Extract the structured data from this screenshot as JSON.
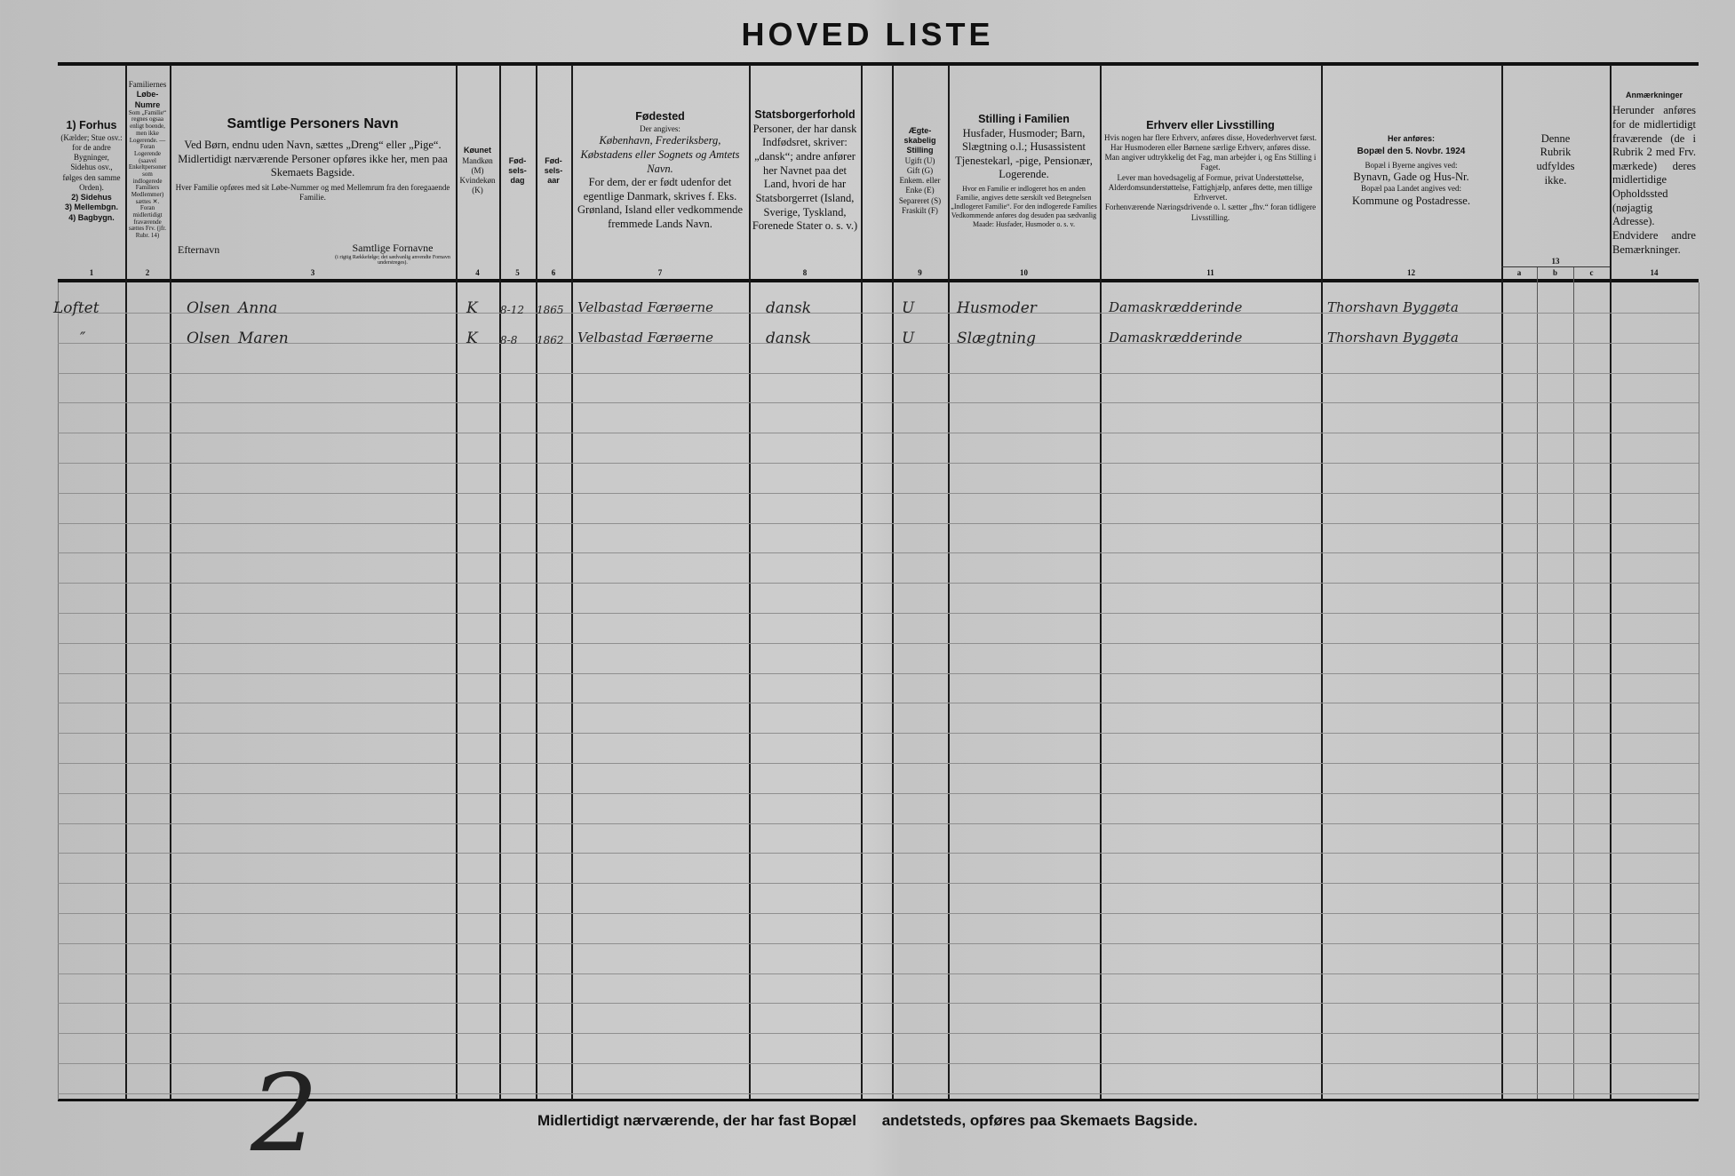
{
  "title": "HOVED LISTE",
  "columns": [
    {
      "num": "1",
      "lines": [
        "1) Forhus",
        "(Kælder; Stue osv.: for de andre Bygninger, Sidehus osv., følges den samme Orden).",
        "2) Sidehus",
        "3) Mellembgn.",
        "4) Bagbygn."
      ]
    },
    {
      "num": "2",
      "lines": [
        "Familiernes",
        "Løbe-Numre",
        "Som „Familie“ regnes ogsaa enligt boende, men ikke Logerende. — Foran Logerende (saavel Enkeltpersoner som indlogerede Familiers Medlemmer) sættes ✕. Foran midlertidigt fraværende sættes Frv. (jfr. Rubr. 14)"
      ]
    },
    {
      "num": "3",
      "lines": [
        "Samtlige Personers Navn",
        "Ved Børn, endnu uden Navn, sættes „Dreng“ eller „Pige“.",
        "Midlertidigt nærværende Personer opføres ikke her, men paa Skemaets Bagside.",
        "Hver Familie opføres med sit Løbe-Nummer og med Mellemrum fra den foregaaende Familie."
      ],
      "sub_left": "Efternavn",
      "sub_right": "Samtlige Fornavne",
      "sub_right_note": "(i rigtig Rækkefølge; det sædvanlig anvendte Fornavn understreges)."
    },
    {
      "num": "4",
      "lines": [
        "Køunet",
        "Mandkøn (M)",
        "Kvindekøn (K)"
      ]
    },
    {
      "num": "5",
      "lines": [
        "Fød-sels-dag"
      ]
    },
    {
      "num": "6",
      "lines": [
        "Fød-sels-aar"
      ]
    },
    {
      "num": "7",
      "lines": [
        "Fødested",
        "Der angives:",
        "København, Frederiksberg, Købstadens eller Sognets og Amtets Navn.",
        "For dem, der er født udenfor det egentlige Danmark, skrives f. Eks. Grønland, Island eller vedkommende fremmede Lands Navn."
      ]
    },
    {
      "num": "8",
      "lines": [
        "Statsborgerforhold",
        "Personer, der har dansk Indfødsret, skriver: „dansk“; andre anfører her Navnet paa det Land, hvori de har Statsborgerret (Island, Sverige, Tyskland, Forenede Stater o. s. v.)"
      ]
    },
    {
      "num": "9",
      "lines": [
        "Ægte-skabelig Stilling",
        "Ugift (U)",
        "Gift (G)",
        "Enkem. eller Enke (E)",
        "Separeret (S)",
        "Fraskilt (F)"
      ]
    },
    {
      "num": "10",
      "lines": [
        "Stilling i Familien",
        "Husfader, Husmoder; Barn, Slægtning o.l.; Husassistent Tjenestekarl, -pige, Pensionær, Logerende.",
        "Hvor en Familie er indlogeret hos en anden Familie, angives dette særskilt ved Betegnelsen „Indlogeret Familie“. For den indlogerede Families Vedkommende anføres dog desuden paa sædvanlig Maade: Husfader, Husmoder o. s. v."
      ]
    },
    {
      "num": "11",
      "lines": [
        "Erhverv eller Livsstilling",
        "Hvis nogen har flere Erhverv, anføres disse, Hovederhvervet først.",
        "Har Husmoderen eller Børnene særlige Erhverv, anføres disse.",
        "Man angiver udtrykkelig det Fag, man arbejder i, og Ens Stilling i Faget.",
        "Lever man hovedsagelig af Formue, privat Understøttelse, Alderdomsunderstøttelse, Fattighjælp, anføres dette, men tillige Erhvervet.",
        "Forhenværende Næringsdrivende o. l. sætter „fhv.“ foran tidligere Livsstilling."
      ]
    },
    {
      "num": "12",
      "lines": [
        "Her anføres:",
        "Bopæl den 5. Novbr. 1924",
        "Bopæl i Byerne angives ved:",
        "Bynavn, Gade og Hus-Nr.",
        "Bopæl paa Landet angives ved:",
        "Kommune og Postadresse."
      ]
    },
    {
      "num": "13",
      "lines": [
        "Denne Rubrik udfyldes ikke."
      ],
      "sub": [
        "a",
        "b",
        "c"
      ]
    },
    {
      "num": "14",
      "lines": [
        "Anmærkninger",
        "Herunder anføres for de midlertidigt fraværende (de i Rubrik 2 med Frv. mærkede) deres midlertidige Opholdssted (nøjagtig Adresse). Endvidere andre Bemærkninger."
      ]
    }
  ],
  "entries": [
    {
      "building": "Loftet",
      "family_no": "",
      "surname": "Olsen",
      "given": "Anna",
      "sex": "K",
      "birth_day": "8-12",
      "birth_year": "1865",
      "birthplace": "Velbastad Færøerne",
      "citizenship": "dansk",
      "marital": "U",
      "family_position": "Husmoder",
      "occupation": "Damaskrædderinde",
      "residence": "Thorshavn Byggøta"
    },
    {
      "building": "″",
      "family_no": "",
      "surname": "Olsen",
      "given": "Maren",
      "sex": "K",
      "birth_day": "8-8",
      "birth_year": "1862",
      "birthplace": "Velbastad Færøerne",
      "citizenship": "dansk",
      "marital": "U",
      "family_position": "Slægtning",
      "occupation": "Damaskrædderinde",
      "residence": "Thorshavn Byggøta"
    }
  ],
  "footer": {
    "left": "Midlertidigt nærværende, der har fast Bopæl",
    "right": "andetsteds, opføres paa Skemaets Bagside."
  },
  "page_number": "2"
}
